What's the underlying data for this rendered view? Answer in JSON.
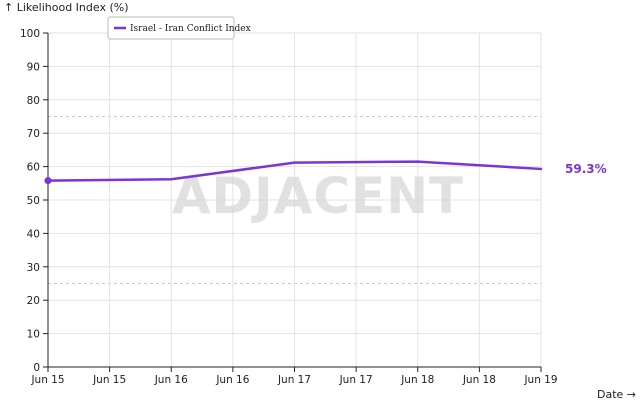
{
  "chart_data": {
    "type": "line",
    "ylabel": "↑ Likelihood Index (%)",
    "xlabel": "Date →",
    "x_tick_labels": [
      "Jun 15",
      "Jun 15",
      "Jun 16",
      "Jun 16",
      "Jun 17",
      "Jun 17",
      "Jun 18",
      "Jun 18",
      "Jun 19"
    ],
    "ylim": [
      0,
      100
    ],
    "y_ticks": [
      0,
      10,
      20,
      30,
      40,
      50,
      60,
      70,
      80,
      90,
      100
    ],
    "grid": true,
    "legend_position": "top-left",
    "series": [
      {
        "name": "Israel - Iran Conflict Index",
        "color": "#7b35d6",
        "x": [
          "Jun 15",
          "Jun 16",
          "Jun 17",
          "Jun 18",
          "Jun 19"
        ],
        "values": [
          55.8,
          56.2,
          61.2,
          61.5,
          59.3
        ]
      }
    ],
    "end_label": "59.3%",
    "watermark": "ADJACENT"
  }
}
